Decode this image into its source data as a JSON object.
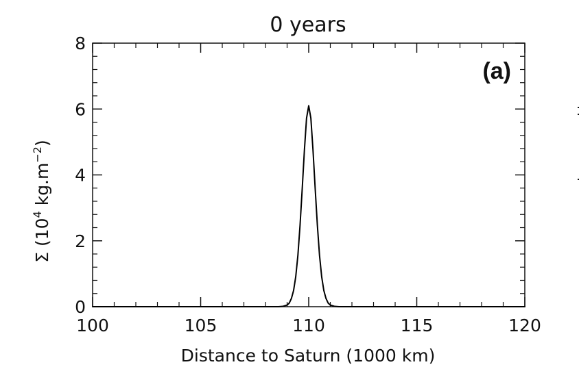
{
  "chart_data": {
    "type": "line",
    "title": "0 years",
    "panel_label": "(a)",
    "xlabel": "Distance to Saturn (1000 km)",
    "ylabel": {
      "prefix": "Σ  (10",
      "sup1": "4",
      "middle": " kg.m",
      "sup2": "−2",
      "suffix": ")"
    },
    "xlim": [
      100,
      120
    ],
    "ylim": [
      0,
      8
    ],
    "xticks": [
      "100",
      "105",
      "110",
      "115",
      "120"
    ],
    "yticks": [
      "0",
      "2",
      "4",
      "6",
      "8"
    ],
    "grid": false,
    "series": [
      {
        "color": "#000000",
        "x": [
          100.0,
          105.0,
          108.6,
          108.8,
          109.0,
          109.1,
          109.2,
          109.3,
          109.4,
          109.5,
          109.6,
          109.7,
          109.8,
          109.9,
          110.0,
          110.1,
          110.2,
          110.3,
          110.4,
          110.5,
          110.6,
          110.7,
          110.8,
          110.9,
          111.0,
          111.2,
          111.4,
          115.0,
          120.0
        ],
        "y": [
          0.0,
          0.0,
          0.0,
          0.01,
          0.05,
          0.11,
          0.25,
          0.49,
          0.91,
          1.56,
          2.48,
          3.58,
          4.74,
          5.72,
          6.1,
          5.72,
          4.74,
          3.58,
          2.48,
          1.56,
          0.91,
          0.49,
          0.25,
          0.11,
          0.05,
          0.01,
          0.0,
          0.0,
          0.0
        ]
      }
    ]
  }
}
